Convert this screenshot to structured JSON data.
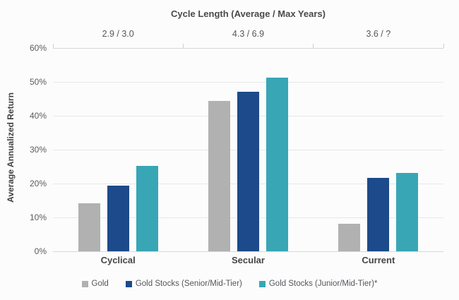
{
  "chart_data": {
    "type": "bar",
    "title": "Cycle Length (Average / Max Years)",
    "ylabel": "Average Annualized Return",
    "xlabel": "",
    "categories": [
      "Cyclical",
      "Secular",
      "Current"
    ],
    "cycle_length_labels": [
      "2.9 / 3.0",
      "4.3 / 6.9",
      "3.6 / ?"
    ],
    "series": [
      {
        "name": "Gold",
        "color": "#b1b1b1",
        "values": [
          14.2,
          44.3,
          8.2
        ]
      },
      {
        "name": "Gold Stocks (Senior/Mid-Tier)",
        "color": "#1c4a8a",
        "values": [
          19.3,
          47,
          21.7
        ]
      },
      {
        "name": "Gold Stocks (Junior/Mid-Tier)*",
        "color": "#38a6b5",
        "values": [
          25.3,
          51.2,
          23.1
        ]
      }
    ],
    "ylim": [
      0,
      60
    ],
    "y_tick_step": 10,
    "y_tick_suffix": "%",
    "grid": true,
    "legend_position": "bottom"
  },
  "colors": {
    "background": "#fcfcfc",
    "gridline": "#e7e7e7",
    "axis_line": "#d6d6d6",
    "baseline": "#d9d9d9",
    "tick": "#cfcfcf"
  }
}
